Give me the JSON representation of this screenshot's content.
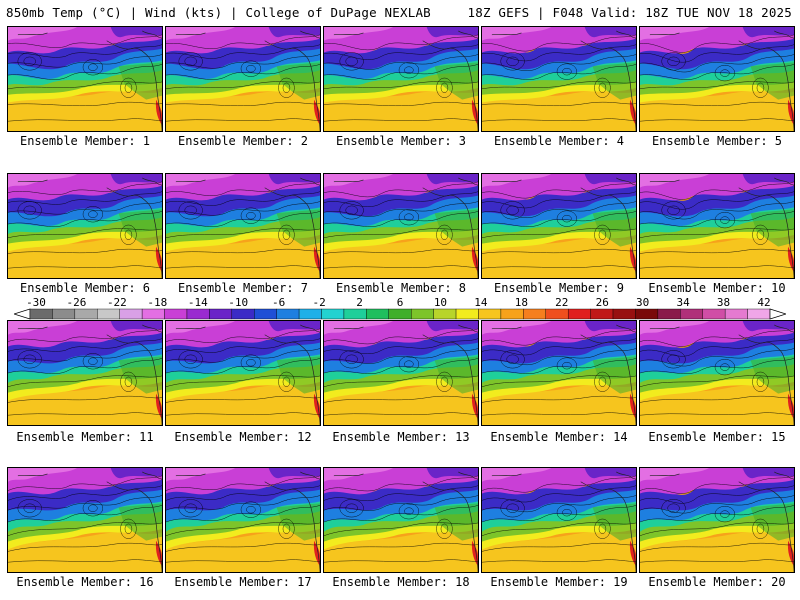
{
  "header": {
    "left": "850mb Temp (°C) | Wind (kts) | College of DuPage NEXLAB",
    "right": "18Z GEFS | F048 Valid: 18Z TUE NOV 18 2025"
  },
  "caption_prefix": "Ensemble Member:",
  "members": [
    {
      "label": "Ensemble Member: 1"
    },
    {
      "label": "Ensemble Member: 2"
    },
    {
      "label": "Ensemble Member: 3"
    },
    {
      "label": "Ensemble Member: 4"
    },
    {
      "label": "Ensemble Member: 5"
    },
    {
      "label": "Ensemble Member: 6"
    },
    {
      "label": "Ensemble Member: 7"
    },
    {
      "label": "Ensemble Member: 8"
    },
    {
      "label": "Ensemble Member: 9"
    },
    {
      "label": "Ensemble Member: 10"
    },
    {
      "label": "Ensemble Member: 11"
    },
    {
      "label": "Ensemble Member: 12"
    },
    {
      "label": "Ensemble Member: 13"
    },
    {
      "label": "Ensemble Member: 14"
    },
    {
      "label": "Ensemble Member: 15"
    },
    {
      "label": "Ensemble Member: 16"
    },
    {
      "label": "Ensemble Member: 17"
    },
    {
      "label": "Ensemble Member: 18"
    },
    {
      "label": "Ensemble Member: 19"
    },
    {
      "label": "Ensemble Member: 20"
    }
  ],
  "colorbar": {
    "ticks": [
      "-30",
      "-26",
      "-22",
      "-18",
      "-14",
      "-10",
      "-6",
      "-2",
      "2",
      "6",
      "10",
      "14",
      "18",
      "22",
      "26",
      "30",
      "34",
      "38",
      "42"
    ],
    "colors": [
      "#6b6b6b",
      "#8c8c8c",
      "#a9a9a9",
      "#c8c8c8",
      "#d9a0e6",
      "#e36fe3",
      "#c93fd6",
      "#9a2bd0",
      "#6a24c8",
      "#3b2bc6",
      "#1f4fd6",
      "#1e7fe0",
      "#1fb0e8",
      "#22d2d0",
      "#1fcf9a",
      "#1fbf5e",
      "#3faf2b",
      "#7dc42a",
      "#b8d42a",
      "#f2ec1e",
      "#f6c51e",
      "#f7a21b",
      "#f57f1e",
      "#ef4f1e",
      "#e0201e",
      "#c01818",
      "#981010",
      "#7a0a0a",
      "#8a1a4a",
      "#b0307a",
      "#d04ea6",
      "#e57ad0",
      "#f0a6e8"
    ]
  }
}
